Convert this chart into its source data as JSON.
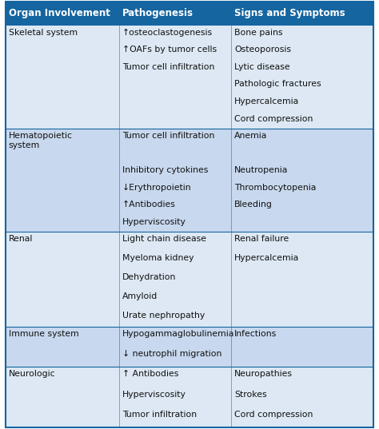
{
  "header": [
    "Organ Involvement",
    "Pathogenesis",
    "Signs and Symptoms"
  ],
  "header_bg": "#1565a0",
  "header_text_color": "#ffffff",
  "bg_light": "#dde8f4",
  "bg_dark": "#c8d8ee",
  "border_color": "#1565a0",
  "text_color": "#111111",
  "font_size": 7.8,
  "header_font_size": 8.5,
  "rows": [
    {
      "organ": "Skeletal system",
      "pathogenesis": [
        "↑osteoclastogenesis",
        "↑OAFs by tumor cells",
        "Tumor cell infiltration"
      ],
      "signs": [
        "Bone pains",
        "Osteoporosis",
        "Lytic disease",
        "Pathologic fractures",
        "Hypercalcemia",
        "Cord compression"
      ],
      "bg": "light",
      "n_lines": 6
    },
    {
      "organ": "Hematopoietic\nsystem",
      "pathogenesis": [
        "Tumor cell infiltration",
        "",
        "Inhibitory cytokines",
        "↓Erythropoietin",
        "↑Antibodies",
        "Hyperviscosity"
      ],
      "signs": [
        "Anemia",
        "",
        "Neutropenia",
        "Thrombocytopenia",
        "Bleeding",
        ""
      ],
      "bg": "dark",
      "n_lines": 6
    },
    {
      "organ": "Renal",
      "pathogenesis": [
        "Light chain disease",
        "Myeloma kidney",
        "Dehydration",
        "Amyloid",
        "Urate nephropathy"
      ],
      "signs": [
        "Renal failure",
        "Hypercalcemia"
      ],
      "bg": "light",
      "n_lines": 5
    },
    {
      "organ": "Immune system",
      "pathogenesis": [
        "Hypogammaglobulinemia",
        "↓ neutrophil migration"
      ],
      "signs": [
        "Infections"
      ],
      "bg": "dark",
      "n_lines": 2
    },
    {
      "organ": "Neurologic",
      "pathogenesis": [
        "↑ Antibodies",
        "Hyperviscosity",
        "Tumor infiltration"
      ],
      "signs": [
        "Neuropathies",
        "Strokes",
        "Cord compression"
      ],
      "bg": "light",
      "n_lines": 3
    }
  ]
}
